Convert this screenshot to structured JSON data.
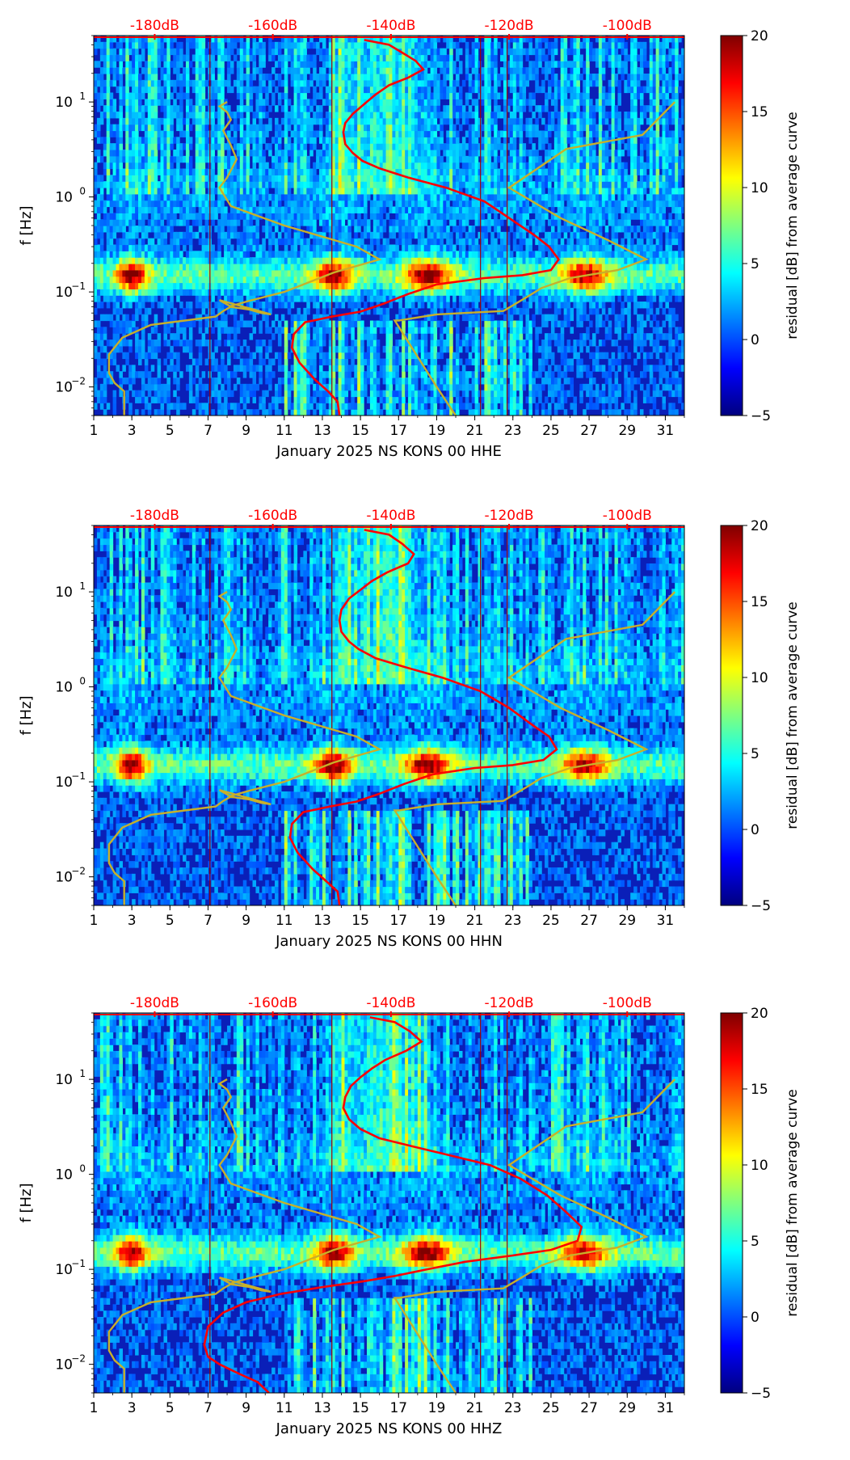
{
  "colors": {
    "average_curve": "#ff0000",
    "noise_model": "#c8b02a",
    "db_marker": "#ff0000",
    "day_line": "#a00000",
    "colormap": [
      "#00007f",
      "#0000ff",
      "#007fff",
      "#00ffff",
      "#7fff7f",
      "#ffff00",
      "#ff7f00",
      "#ff0000",
      "#7f0000"
    ]
  },
  "colorbar": {
    "label": "residual [dB] from average curve",
    "range": [
      -5,
      20
    ],
    "ticks": [
      "20",
      "15",
      "10",
      "5",
      "0",
      "−5"
    ],
    "tick_values": [
      20,
      15,
      10,
      5,
      0,
      -5
    ]
  },
  "chart_data": [
    {
      "type": "heatmap",
      "title": "",
      "xlabel": "January 2025 NS KONS 00 HHE",
      "ylabel": "f [Hz]",
      "x_ticks": [
        "1",
        "3",
        "5",
        "7",
        "9",
        "11",
        "13",
        "15",
        "17",
        "19",
        "21",
        "23",
        "25",
        "27",
        "29",
        "31"
      ],
      "x_range": [
        1,
        32
      ],
      "y_scale": "log",
      "y_range_hz": [
        0.005,
        50
      ],
      "y_tick_values": [
        0.01,
        0.1,
        1,
        10
      ],
      "y_ticks": [
        "10",
        "10",
        "10",
        "10"
      ],
      "y_tick_exponents": [
        "−2",
        "−1",
        "0",
        "1"
      ],
      "db_scale": {
        "labels": [
          "-180dB",
          "-160dB",
          "-140dB",
          "-120dB",
          "-100dB"
        ],
        "x_days": [
          4.2,
          10.4,
          16.6,
          22.8,
          29.0
        ]
      },
      "average_curve": {
        "day": [
          15.2,
          16.5,
          17.2,
          17.9,
          18.3,
          17.5,
          16.5,
          15.8,
          15.2,
          14.6,
          14.2,
          14.1,
          14.2,
          14.6,
          15.1,
          16.0,
          17.5,
          19.5,
          21.5,
          22.8,
          24.1,
          24.9,
          25.4,
          25.0,
          23.5,
          21.5,
          19.0,
          17.5,
          16.2,
          15.0,
          13.5,
          12.1,
          11.5,
          11.4,
          11.8,
          12.6,
          13.3,
          13.8,
          13.9
        ],
        "freq_hz": [
          45,
          40,
          33,
          27,
          22,
          18,
          15,
          12,
          9.5,
          7.5,
          6,
          4.8,
          3.6,
          2.9,
          2.4,
          2.0,
          1.6,
          1.25,
          0.9,
          0.6,
          0.4,
          0.3,
          0.22,
          0.17,
          0.15,
          0.14,
          0.12,
          0.095,
          0.075,
          0.062,
          0.055,
          0.048,
          0.036,
          0.026,
          0.018,
          0.012,
          0.009,
          0.007,
          0.005
        ]
      },
      "noise_model": {
        "day": [
          2.6,
          2.6,
          2.1,
          1.8,
          1.8,
          2.5,
          4.0,
          7.4,
          7.8,
          8.2,
          7.6,
          9.8,
          10.3,
          9.8,
          9.2,
          8.1,
          9.1,
          11.0,
          13.6,
          16.0,
          14.8,
          11.0,
          8.2,
          7.6,
          8.0,
          8.5,
          8.2,
          7.8,
          8.2,
          8.0,
          7.6,
          8.0
        ],
        "freq_hz": [
          0.005,
          0.009,
          0.011,
          0.014,
          0.022,
          0.033,
          0.045,
          0.055,
          0.063,
          0.07,
          0.082,
          0.062,
          0.058,
          0.06,
          0.065,
          0.07,
          0.08,
          0.1,
          0.16,
          0.22,
          0.3,
          0.5,
          0.8,
          1.25,
          1.6,
          2.5,
          3.5,
          5.0,
          6.5,
          7.8,
          9.0,
          10.0
        ],
        "day2": [
          20.0,
          19.0,
          17.5,
          16.8,
          17.0,
          19.0,
          22.5,
          23.8,
          24.5,
          26.0,
          28.5,
          30.0,
          28.0,
          25.5,
          22.8,
          25.8,
          29.8,
          31.5
        ],
        "freq_hz2": [
          0.005,
          0.01,
          0.03,
          0.05,
          0.05,
          0.058,
          0.063,
          0.09,
          0.11,
          0.14,
          0.17,
          0.22,
          0.35,
          0.6,
          1.25,
          3.2,
          4.5,
          10.0
        ]
      }
    },
    {
      "type": "heatmap",
      "title": "",
      "xlabel": "January 2025 NS KONS 00 HHN",
      "ylabel": "f [Hz]",
      "x_ticks": [
        "1",
        "3",
        "5",
        "7",
        "9",
        "11",
        "13",
        "15",
        "17",
        "19",
        "21",
        "23",
        "25",
        "27",
        "29",
        "31"
      ],
      "x_range": [
        1,
        32
      ],
      "y_scale": "log",
      "y_range_hz": [
        0.005,
        50
      ],
      "y_tick_values": [
        0.01,
        0.1,
        1,
        10
      ],
      "y_ticks": [
        "10",
        "10",
        "10",
        "10"
      ],
      "y_tick_exponents": [
        "−2",
        "−1",
        "0",
        "1"
      ],
      "db_scale": {
        "labels": [
          "-180dB",
          "-160dB",
          "-140dB",
          "-120dB",
          "-100dB"
        ],
        "x_days": [
          4.2,
          10.4,
          16.6,
          22.8,
          29.0
        ]
      },
      "average_curve": {
        "day": [
          15.2,
          16.5,
          17.2,
          17.8,
          17.5,
          16.4,
          15.6,
          15.0,
          14.4,
          14.0,
          13.9,
          14.0,
          14.4,
          14.9,
          15.8,
          17.4,
          19.3,
          21.3,
          22.8,
          24.0,
          24.9,
          25.3,
          24.6,
          23.0,
          21.0,
          18.8,
          17.3,
          16.0,
          14.8,
          13.4,
          12.0,
          11.4,
          11.3,
          11.7,
          12.5,
          13.2,
          13.8,
          13.9
        ],
        "freq_hz": [
          45,
          40,
          32,
          25,
          20,
          16,
          13,
          10.5,
          8.5,
          6.5,
          5,
          3.8,
          3.0,
          2.5,
          2.0,
          1.6,
          1.25,
          0.9,
          0.6,
          0.4,
          0.3,
          0.22,
          0.17,
          0.15,
          0.14,
          0.12,
          0.095,
          0.075,
          0.062,
          0.055,
          0.048,
          0.036,
          0.026,
          0.018,
          0.012,
          0.009,
          0.007,
          0.005
        ]
      },
      "noise_model": {
        "day": [
          2.6,
          2.6,
          2.1,
          1.8,
          1.8,
          2.5,
          4.0,
          7.4,
          7.8,
          8.2,
          7.6,
          9.8,
          10.3,
          9.8,
          9.2,
          8.1,
          9.1,
          11.0,
          13.6,
          16.0,
          14.8,
          11.0,
          8.2,
          7.6,
          8.0,
          8.5,
          8.2,
          7.8,
          8.2,
          8.0,
          7.6,
          8.0
        ],
        "freq_hz": [
          0.005,
          0.009,
          0.011,
          0.014,
          0.022,
          0.033,
          0.045,
          0.055,
          0.063,
          0.07,
          0.082,
          0.062,
          0.058,
          0.06,
          0.065,
          0.07,
          0.08,
          0.1,
          0.16,
          0.22,
          0.3,
          0.5,
          0.8,
          1.25,
          1.6,
          2.5,
          3.5,
          5.0,
          6.5,
          7.8,
          9.0,
          10.0
        ],
        "day2": [
          20.0,
          19.0,
          17.5,
          16.8,
          17.0,
          19.0,
          22.5,
          23.8,
          24.5,
          26.0,
          28.5,
          30.0,
          28.0,
          25.5,
          22.8,
          25.8,
          29.8,
          31.5
        ],
        "freq_hz2": [
          0.005,
          0.01,
          0.03,
          0.05,
          0.05,
          0.058,
          0.063,
          0.09,
          0.11,
          0.14,
          0.17,
          0.22,
          0.35,
          0.6,
          1.25,
          3.2,
          4.5,
          10.0
        ]
      }
    },
    {
      "type": "heatmap",
      "title": "",
      "xlabel": "January 2025 NS KONS 00 HHZ",
      "ylabel": "f [Hz]",
      "x_ticks": [
        "1",
        "3",
        "5",
        "7",
        "9",
        "11",
        "13",
        "15",
        "17",
        "19",
        "21",
        "23",
        "25",
        "27",
        "29",
        "31"
      ],
      "x_range": [
        1,
        32
      ],
      "y_scale": "log",
      "y_range_hz": [
        0.005,
        50
      ],
      "y_tick_values": [
        0.01,
        0.1,
        1,
        10
      ],
      "y_ticks": [
        "10",
        "10",
        "10",
        "10"
      ],
      "y_tick_exponents": [
        "−2",
        "−1",
        "0",
        "1"
      ],
      "db_scale": {
        "labels": [
          "-180dB",
          "-160dB",
          "-140dB",
          "-120dB",
          "-100dB"
        ],
        "x_days": [
          4.2,
          10.4,
          16.6,
          22.8,
          29.0
        ]
      },
      "average_curve": {
        "day": [
          15.5,
          16.8,
          17.6,
          18.2,
          17.4,
          16.3,
          15.6,
          15.0,
          14.5,
          14.2,
          14.1,
          14.4,
          15.0,
          16.0,
          17.6,
          19.6,
          21.8,
          23.4,
          24.8,
          25.8,
          26.6,
          26.4,
          25.0,
          23.0,
          20.5,
          18.5,
          16.8,
          15.2,
          13.0,
          10.8,
          9.0,
          7.8,
          7.0,
          6.8,
          7.0,
          7.6,
          8.6,
          9.6,
          10.2
        ],
        "freq_hz": [
          45,
          40,
          32,
          25,
          20,
          16,
          13,
          10.5,
          8.5,
          6.5,
          5,
          3.8,
          3.0,
          2.4,
          2.0,
          1.6,
          1.25,
          0.9,
          0.6,
          0.4,
          0.28,
          0.2,
          0.16,
          0.14,
          0.12,
          0.1,
          0.085,
          0.075,
          0.065,
          0.055,
          0.045,
          0.035,
          0.025,
          0.016,
          0.012,
          0.01,
          0.008,
          0.0065,
          0.005
        ]
      },
      "noise_model": {
        "day": [
          2.6,
          2.6,
          2.1,
          1.8,
          1.8,
          2.5,
          4.0,
          7.4,
          7.8,
          8.2,
          7.6,
          9.8,
          10.3,
          9.8,
          9.2,
          8.1,
          9.1,
          11.0,
          13.6,
          16.0,
          14.8,
          11.0,
          8.2,
          7.6,
          8.0,
          8.5,
          8.2,
          7.8,
          8.2,
          8.0,
          7.6,
          8.0
        ],
        "freq_hz": [
          0.005,
          0.009,
          0.011,
          0.014,
          0.022,
          0.033,
          0.045,
          0.055,
          0.063,
          0.07,
          0.082,
          0.062,
          0.058,
          0.06,
          0.065,
          0.07,
          0.08,
          0.1,
          0.16,
          0.22,
          0.3,
          0.5,
          0.8,
          1.25,
          1.6,
          2.5,
          3.5,
          5.0,
          6.5,
          7.8,
          9.0,
          10.0
        ],
        "day2": [
          20.0,
          19.0,
          17.5,
          16.8,
          17.0,
          19.0,
          22.5,
          23.8,
          24.5,
          26.0,
          28.5,
          30.0,
          28.0,
          25.5,
          22.8,
          25.8,
          29.8,
          31.5
        ],
        "freq_hz2": [
          0.005,
          0.01,
          0.03,
          0.05,
          0.05,
          0.058,
          0.063,
          0.09,
          0.11,
          0.14,
          0.17,
          0.22,
          0.35,
          0.6,
          1.25,
          3.2,
          4.5,
          10.0
        ]
      }
    }
  ]
}
